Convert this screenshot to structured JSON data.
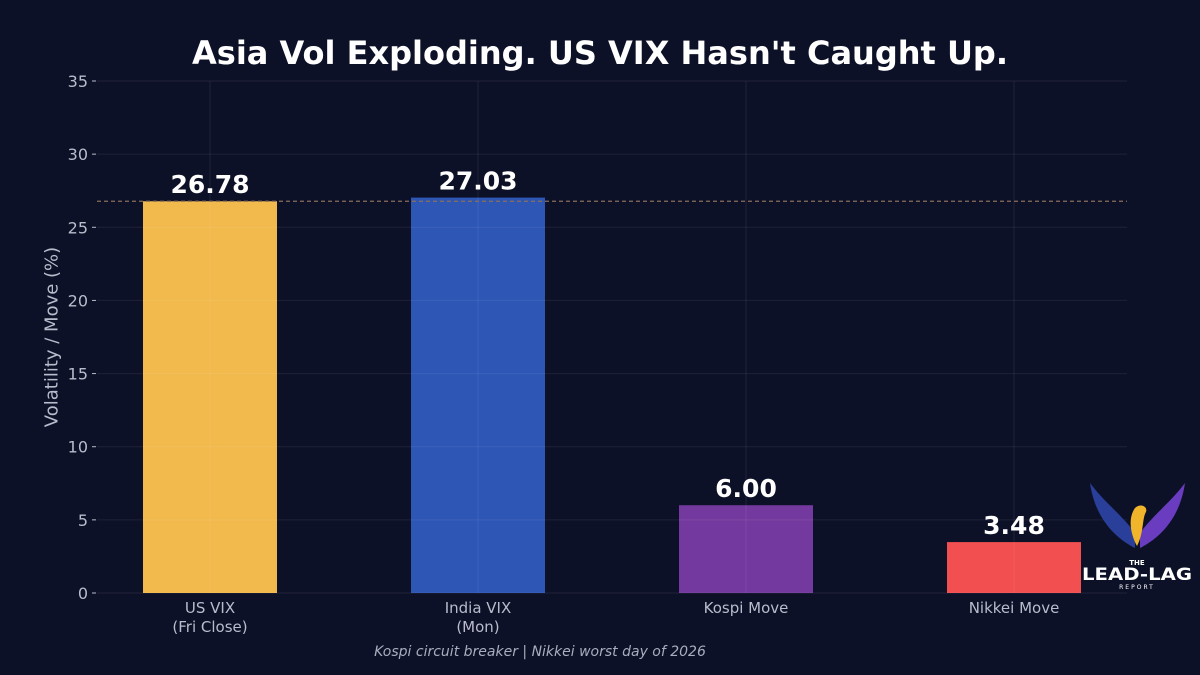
{
  "chart_data": {
    "type": "bar",
    "title": "Asia Vol Exploding. US VIX Hasn't Caught Up.",
    "ylabel": "Volatility / Move (%)",
    "xlabel": "",
    "categories": [
      [
        "US VIX",
        "(Fri Close)"
      ],
      [
        "India VIX",
        "(Mon)"
      ],
      [
        "Kospi Move"
      ],
      [
        "Nikkei Move"
      ]
    ],
    "values": [
      26.78,
      27.03,
      6.0,
      3.48
    ],
    "data_labels": [
      "26.78",
      "27.03",
      "6.00",
      "3.48"
    ],
    "colors": [
      "#FFC44F",
      "#2F5BBD",
      "#7A3CA4",
      "#FF5353"
    ],
    "ylim": [
      0,
      35
    ],
    "yticks": [
      0,
      5,
      10,
      15,
      20,
      25,
      30,
      35
    ],
    "reference_line": {
      "value": 26.78,
      "style": "dashed",
      "color": "#8a6f5a"
    },
    "grid": true,
    "caption": "Kospi circuit breaker | Nikkei worst day of 2026"
  },
  "logo": {
    "text_top": "THE",
    "text_main": "LEAD-LAG",
    "text_bottom": "REPORT"
  }
}
